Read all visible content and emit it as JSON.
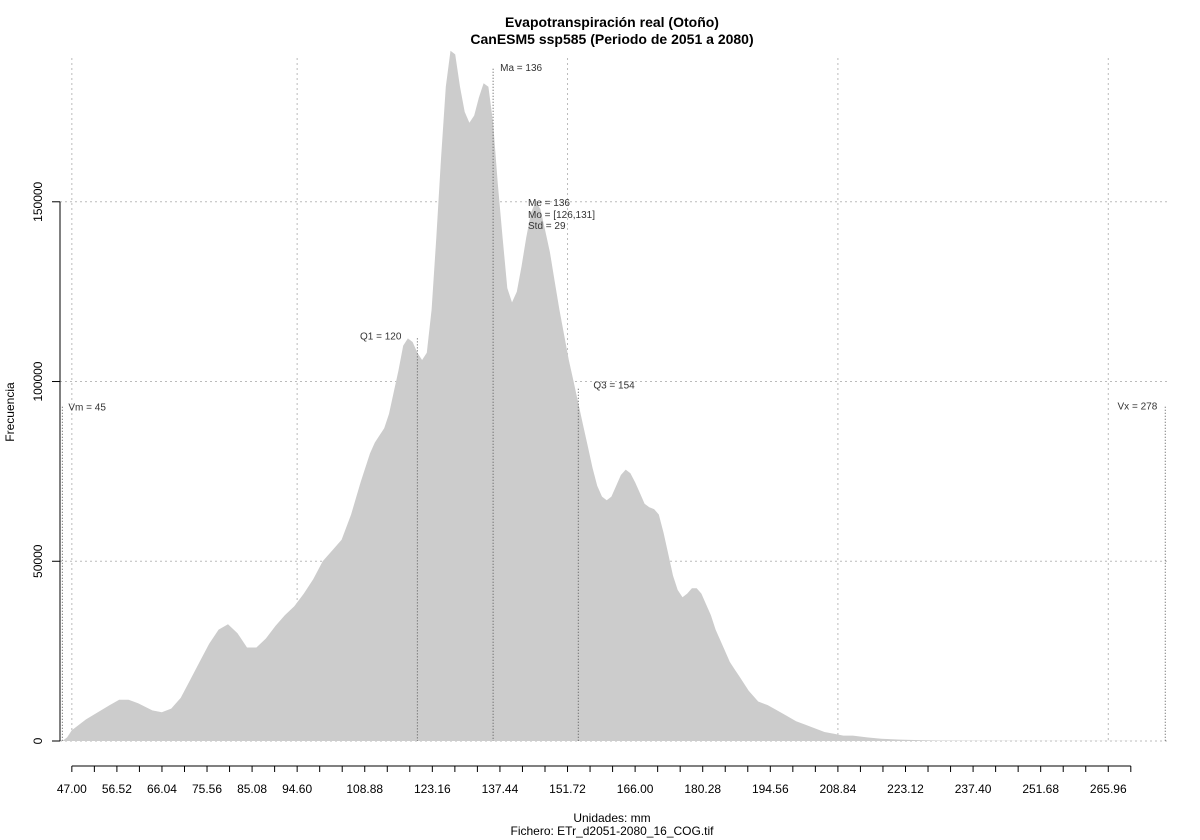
{
  "chart_data": {
    "type": "area",
    "title": "Evapotranspiración real (Otoño)",
    "subtitle": "CanESM5 ssp585 (Periodo de 2051 a 2080)",
    "xlabel": "Unidades: mm",
    "file_label": "Fichero: ETr_d2051-2080_16_COG.tif",
    "ylabel": "Frecuencia",
    "xlim": [
      44.5,
      279
    ],
    "ylim": [
      0,
      190000
    ],
    "grid": true,
    "fill_color": "#cccccc",
    "x_ticks": [
      "47.00",
      "56.52",
      "66.04",
      "75.56",
      "85.08",
      "94.60",
      "108.88",
      "123.16",
      "137.44",
      "151.72",
      "166.00",
      "180.28",
      "194.56",
      "208.84",
      "223.12",
      "237.40",
      "251.68",
      "265.96"
    ],
    "y_ticks": [
      "0",
      "50000",
      "100000",
      "150000"
    ],
    "x": [
      45,
      46,
      47,
      50,
      55,
      57,
      59,
      61,
      64,
      66,
      68,
      70,
      72,
      74,
      76,
      78,
      80,
      82,
      83,
      84,
      86,
      88,
      90,
      92,
      94,
      96,
      98,
      100,
      102,
      104,
      106,
      108,
      110,
      111,
      112,
      113,
      114,
      115,
      116,
      117,
      118,
      119,
      120,
      121,
      122,
      123,
      124,
      125,
      126,
      127,
      128,
      129,
      130,
      131,
      132,
      133,
      134,
      135,
      136,
      137,
      138,
      139,
      140,
      141,
      142,
      143,
      144,
      145,
      146,
      147,
      148,
      149,
      150,
      151,
      152,
      153,
      154,
      155,
      156,
      157,
      158,
      159,
      160,
      161,
      162,
      163,
      164,
      165,
      166,
      167,
      168,
      169,
      170,
      171,
      172,
      173,
      174,
      175,
      176,
      177,
      178,
      179,
      180,
      181,
      182,
      183,
      184,
      185,
      186,
      187,
      188,
      190,
      192,
      194,
      196,
      198,
      200,
      202,
      204,
      206,
      208,
      210,
      212,
      215,
      218,
      222,
      226,
      230,
      235,
      240,
      245,
      250,
      260,
      270,
      277,
      278
    ],
    "y": [
      0,
      1000,
      3000,
      6000,
      10000,
      11500,
      11500,
      10500,
      8500,
      8000,
      9000,
      12000,
      17000,
      22000,
      27000,
      31000,
      32500,
      30000,
      28000,
      26000,
      26000,
      28500,
      32000,
      35000,
      37500,
      41000,
      45000,
      50000,
      53000,
      56000,
      63000,
      72000,
      80000,
      83000,
      85000,
      87000,
      91000,
      97000,
      103000,
      110000,
      112000,
      111000,
      108000,
      106000,
      108000,
      120000,
      140000,
      162000,
      182000,
      192000,
      191000,
      182000,
      175000,
      172000,
      174000,
      179000,
      183000,
      182000,
      172000,
      155000,
      140000,
      126000,
      122000,
      125000,
      132000,
      140000,
      147000,
      150000,
      148000,
      142000,
      136000,
      128000,
      120000,
      113000,
      106000,
      100000,
      94000,
      88000,
      82000,
      76000,
      71000,
      68000,
      67000,
      68000,
      71000,
      74000,
      75500,
      74500,
      72000,
      69000,
      66000,
      65000,
      64500,
      63000,
      58000,
      52000,
      46000,
      42000,
      40000,
      41000,
      42500,
      42500,
      41000,
      38000,
      35000,
      31000,
      28000,
      25000,
      22000,
      20000,
      18000,
      14000,
      11000,
      10000,
      8500,
      7000,
      5500,
      4500,
      3500,
      2500,
      2000,
      1500,
      1500,
      1000,
      600,
      400,
      250,
      150,
      100,
      80,
      60,
      40,
      30,
      20,
      10,
      0
    ],
    "markers": [
      {
        "label": "Vm = 45",
        "x": 45,
        "y_top": 93000
      },
      {
        "label": "Q1 = 120",
        "x": 120,
        "y_top": 112000
      },
      {
        "label": "Ma = 136",
        "x": 136,
        "y_top": 187000
      },
      {
        "label": "Q3 = 154",
        "x": 154,
        "y_top": 98000
      },
      {
        "label": "Vx = 278",
        "x": 278,
        "y_top": 93000
      }
    ],
    "stats": [
      "Me = 136",
      "Mo = [126,131]",
      "Std = 29"
    ]
  }
}
